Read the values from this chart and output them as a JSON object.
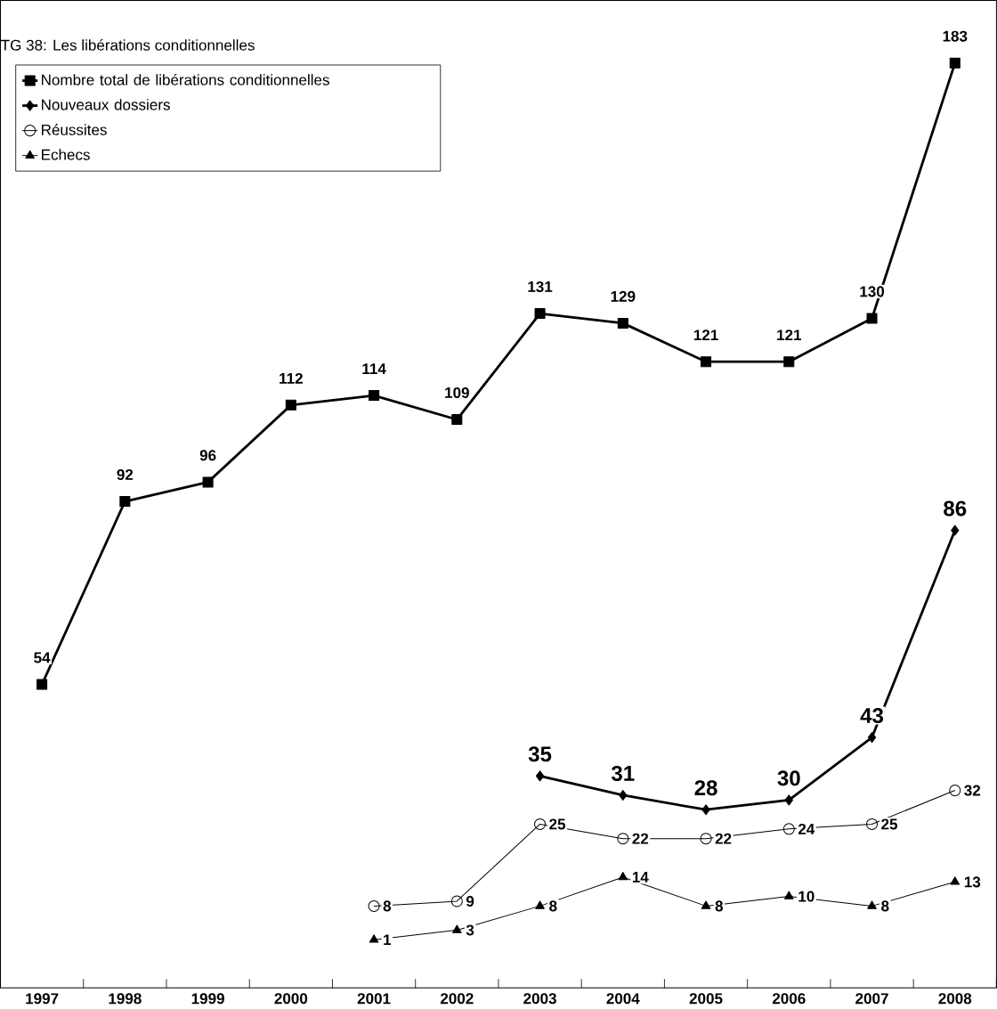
{
  "chart_data": {
    "type": "line",
    "title": "TG 38: Les libérations conditionnelles",
    "categories": [
      "1997",
      "1998",
      "1999",
      "2000",
      "2001",
      "2002",
      "2003",
      "2004",
      "2005",
      "2006",
      "2007",
      "2008"
    ],
    "ylim": [
      -9,
      196
    ],
    "data_labels": true,
    "legend": "top left",
    "grid": false,
    "series": [
      {
        "name": "Nombre total de libérations conditionnelles",
        "color": "#000000",
        "marker": "square",
        "values": [
          54,
          92,
          96,
          112,
          114,
          109,
          131,
          129,
          121,
          121,
          130,
          183
        ]
      },
      {
        "name": "Nouveaux dossiers",
        "color": "#000000",
        "marker": "diamond",
        "values": [
          null,
          null,
          null,
          null,
          null,
          null,
          35,
          31,
          28,
          30,
          43,
          86
        ]
      },
      {
        "name": "Réussites",
        "color": "#000000",
        "marker": "circle",
        "values": [
          null,
          null,
          null,
          null,
          8,
          9,
          25,
          22,
          22,
          24,
          25,
          32
        ]
      },
      {
        "name": "Echecs",
        "color": "#000000",
        "marker": "triangle",
        "values": [
          null,
          null,
          null,
          null,
          1,
          3,
          8,
          14,
          8,
          10,
          8,
          13
        ]
      }
    ]
  }
}
